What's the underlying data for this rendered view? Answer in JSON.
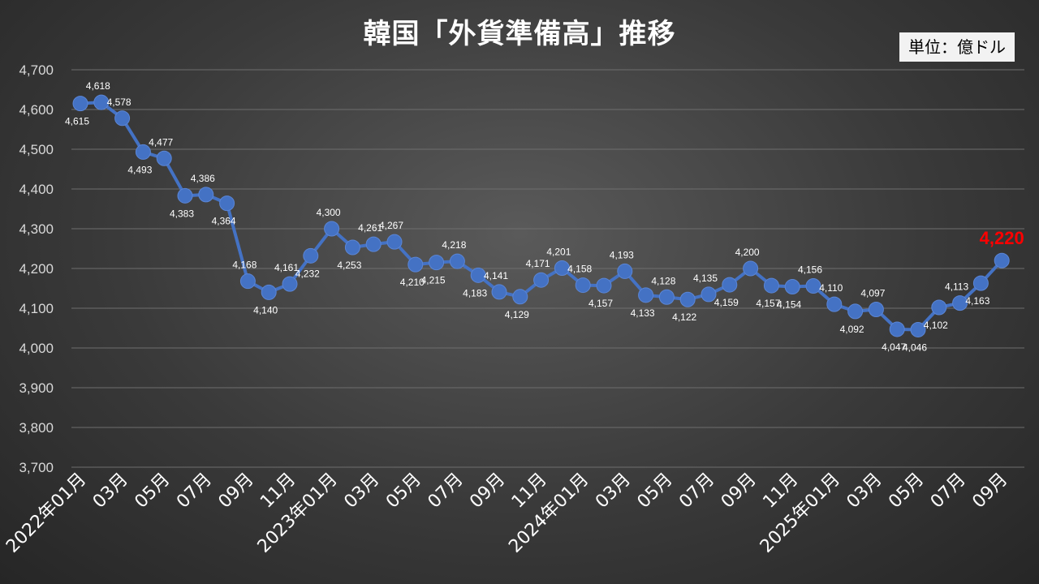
{
  "chart_data": {
    "type": "line",
    "title": "韓国「外貨準備高」推移",
    "unit_label": "単位：億ドル",
    "ylim": [
      3700,
      4700
    ],
    "yticks": [
      3700,
      3800,
      3900,
      4000,
      4100,
      4200,
      4300,
      4400,
      4500,
      4600,
      4700
    ],
    "ytick_labels": [
      "3,700",
      "3,800",
      "3,900",
      "4,000",
      "4,100",
      "4,200",
      "4,300",
      "4,400",
      "4,500",
      "4,600",
      "4,700"
    ],
    "grid": true,
    "line_color": "#4472c4",
    "highlight_color": "#ff0000",
    "x": [
      "2022年01月",
      "02月",
      "03月",
      "04月",
      "05月",
      "06月",
      "07月",
      "08月",
      "09月",
      "10月",
      "11月",
      "12月",
      "2023年01月",
      "02月",
      "03月",
      "04月",
      "05月",
      "06月",
      "07月",
      "08月",
      "09月",
      "10月",
      "11月",
      "12月",
      "2024年01月",
      "02月",
      "03月",
      "04月",
      "05月",
      "06月",
      "07月",
      "08月",
      "09月",
      "10月",
      "11月",
      "12月",
      "2025年01月",
      "02月",
      "03月",
      "04月",
      "05月",
      "06月",
      "07月",
      "08月",
      "09月"
    ],
    "xtick_labels": [
      "2022年01月",
      "03月",
      "05月",
      "07月",
      "09月",
      "11月",
      "2023年01月",
      "03月",
      "05月",
      "07月",
      "09月",
      "11月",
      "2024年01月",
      "03月",
      "05月",
      "07月",
      "09月",
      "11月",
      "2025年01月",
      "03月",
      "05月",
      "07月",
      "09月"
    ],
    "values": [
      4615,
      4618,
      4578,
      4493,
      4477,
      4383,
      4386,
      4364,
      4168,
      4140,
      4161,
      4232,
      4300,
      4253,
      4261,
      4267,
      4210,
      4215,
      4218,
      4183,
      4141,
      4129,
      4171,
      4201,
      4158,
      4157,
      4193,
      4133,
      4128,
      4122,
      4135,
      4159,
      4200,
      4157,
      4154,
      4156,
      4110,
      4092,
      4097,
      4047,
      4046,
      4102,
      4113,
      4163,
      4220
    ],
    "data_labels": [
      "4,615",
      "4,618",
      "4,578",
      "4,493",
      "4,477",
      "4,383",
      "4,386",
      "4,364",
      "4,168",
      "4,140",
      "4,161",
      "4,232",
      "4,300",
      "4,253",
      "4,261",
      "4,267",
      "4,210",
      "4,215",
      "4,218",
      "4,183",
      "4,141",
      "4,129",
      "4,171",
      "4,201",
      "4,158",
      "4,157",
      "4,193",
      "4,133",
      "4,128",
      "4,122",
      "4,135",
      "4,159",
      "4,200",
      "4,157",
      "4,154",
      "4,156",
      "4,110",
      "4,092",
      "4,097",
      "4,047",
      "4,046",
      "4,102",
      "4,113",
      "4,163",
      "4,220"
    ]
  }
}
